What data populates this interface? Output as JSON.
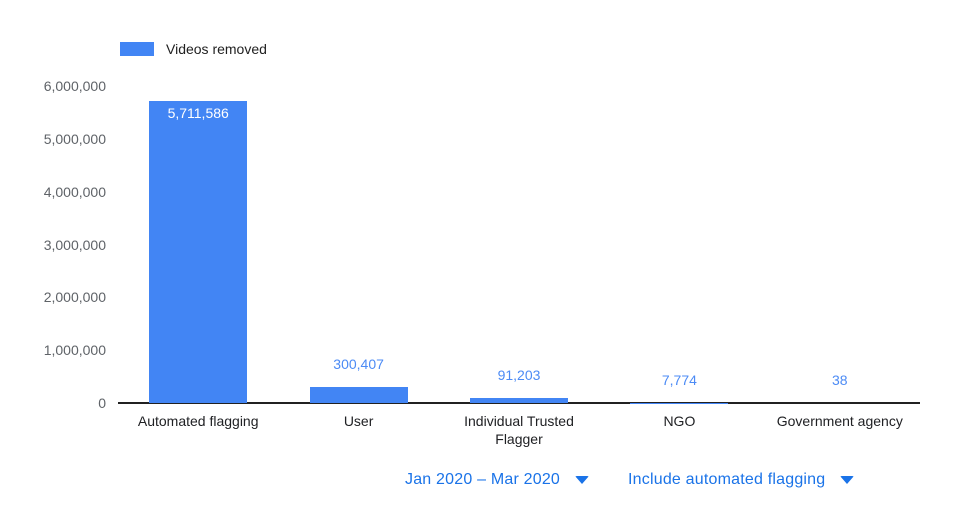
{
  "legend": {
    "label": "Videos removed"
  },
  "chart_data": {
    "type": "bar",
    "title": "",
    "series_name": "Videos removed",
    "categories": [
      "Automated flagging",
      "User",
      "Individual Trusted Flagger",
      "NGO",
      "Government agency"
    ],
    "values": [
      5711586,
      300407,
      91203,
      7774,
      38
    ],
    "value_labels": [
      "5,711,586",
      "300,407",
      "91,203",
      "7,774",
      "38"
    ],
    "ylim": [
      0,
      6000000
    ],
    "yticks": [
      {
        "value": 0,
        "label": "0"
      },
      {
        "value": 1000000,
        "label": "1,000,000"
      },
      {
        "value": 2000000,
        "label": "2,000,000"
      },
      {
        "value": 3000000,
        "label": "3,000,000"
      },
      {
        "value": 4000000,
        "label": "4,000,000"
      },
      {
        "value": 5000000,
        "label": "5,000,000"
      },
      {
        "value": 6000000,
        "label": "6,000,000"
      }
    ],
    "grid": false,
    "legend_position": "top-left"
  },
  "controls": {
    "date_range_label": "Jan 2020 – Mar 2020",
    "filter_label": "Include automated flagging"
  },
  "colors": {
    "bar": "#4285f4",
    "value_label": "#4c8bf5",
    "inside_value_label": "#ffffff",
    "control_text": "#1a73e8",
    "axis_line": "#212121",
    "tick_text": "#5f6368",
    "category_text": "#202124",
    "legend_text": "#212121"
  }
}
